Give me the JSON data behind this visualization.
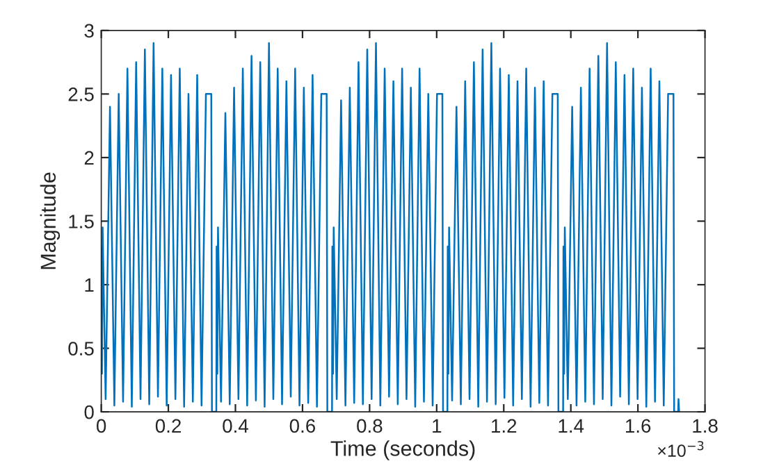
{
  "chart_data": {
    "type": "line",
    "xlabel": "Time (seconds)",
    "ylabel": "Magnitude",
    "annotations": [
      "×10$^{−3}$"
    ],
    "xlim": [
      0,
      1.8
    ],
    "xticks": [
      0,
      0.2,
      0.4,
      0.6,
      0.8,
      1,
      1.2,
      1.4,
      1.6,
      1.8
    ],
    "ylim": [
      0,
      3
    ],
    "yticks": [
      0,
      0.5,
      1,
      1.5,
      2,
      2.5,
      3
    ],
    "grid": false,
    "marker": "none",
    "line_style": "solid",
    "series": [
      {
        "color": "#0072bd",
        "x": [
          0,
          0.002,
          0.004,
          0.013,
          0.026,
          0.039,
          0.052,
          0.065,
          0.078,
          0.091,
          0.104,
          0.117,
          0.13,
          0.143,
          0.156,
          0.169,
          0.182,
          0.195,
          0.208,
          0.221,
          0.234,
          0.247,
          0.26,
          0.273,
          0.286,
          0.299,
          0.312,
          0.328,
          0.33,
          0.343,
          0.344,
          0.346,
          0.348,
          0.357,
          0.37,
          0.383,
          0.396,
          0.409,
          0.422,
          0.435,
          0.448,
          0.461,
          0.474,
          0.487,
          0.5,
          0.513,
          0.526,
          0.539,
          0.552,
          0.565,
          0.578,
          0.591,
          0.604,
          0.617,
          0.63,
          0.643,
          0.656,
          0.672,
          0.674,
          0.688,
          0.689,
          0.691,
          0.693,
          0.702,
          0.715,
          0.728,
          0.741,
          0.754,
          0.767,
          0.78,
          0.793,
          0.806,
          0.819,
          0.832,
          0.845,
          0.858,
          0.871,
          0.884,
          0.897,
          0.91,
          0.923,
          0.936,
          0.949,
          0.962,
          0.975,
          0.988,
          1.001,
          1.017,
          1.019,
          1.032,
          1.033,
          1.035,
          1.037,
          1.046,
          1.059,
          1.072,
          1.085,
          1.098,
          1.111,
          1.124,
          1.137,
          1.15,
          1.163,
          1.176,
          1.189,
          1.202,
          1.215,
          1.228,
          1.241,
          1.254,
          1.267,
          1.28,
          1.293,
          1.306,
          1.319,
          1.332,
          1.345,
          1.361,
          1.363,
          1.377,
          1.378,
          1.38,
          1.382,
          1.391,
          1.404,
          1.417,
          1.43,
          1.443,
          1.456,
          1.469,
          1.482,
          1.495,
          1.508,
          1.521,
          1.534,
          1.547,
          1.56,
          1.573,
          1.586,
          1.599,
          1.612,
          1.625,
          1.638,
          1.651,
          1.664,
          1.677,
          1.69,
          1.706,
          1.708,
          1.72,
          1.721,
          1.723
        ],
        "values": [
          1.3,
          0.3,
          1.45,
          0.1,
          2.4,
          0.05,
          2.5,
          0.08,
          2.7,
          0.04,
          2.75,
          0.1,
          2.85,
          0.06,
          2.9,
          0.12,
          2.7,
          0.05,
          2.65,
          0.1,
          2.7,
          0.04,
          2.5,
          0.08,
          2.65,
          0.05,
          2.5,
          2.5,
          0,
          0,
          1.3,
          0.3,
          1.45,
          0.08,
          2.35,
          0.06,
          2.55,
          0.1,
          2.7,
          0.05,
          2.8,
          0.09,
          2.75,
          0.04,
          2.9,
          0.1,
          2.7,
          0.06,
          2.6,
          0.12,
          2.7,
          0.05,
          2.55,
          0.07,
          2.65,
          0.04,
          2.5,
          2.5,
          0,
          0,
          1.3,
          0.3,
          1.45,
          0.1,
          2.45,
          0.05,
          2.55,
          0.07,
          2.75,
          0.06,
          2.85,
          0.1,
          2.9,
          0.05,
          2.7,
          0.12,
          2.6,
          0.06,
          2.7,
          0.1,
          2.55,
          0.04,
          2.7,
          0.08,
          2.5,
          0.05,
          2.5,
          2.5,
          0,
          0,
          1.3,
          0.3,
          1.45,
          0.09,
          2.4,
          0.06,
          2.6,
          0.1,
          2.75,
          0.04,
          2.85,
          0.08,
          2.9,
          0.06,
          2.7,
          0.11,
          2.65,
          0.05,
          2.6,
          0.1,
          2.7,
          0.04,
          2.55,
          0.07,
          2.6,
          0.05,
          2.5,
          2.5,
          0,
          0,
          1.3,
          0.3,
          1.45,
          0.1,
          2.4,
          0.05,
          2.55,
          0.08,
          2.7,
          0.06,
          2.8,
          0.1,
          2.9,
          0.05,
          2.75,
          0.12,
          2.65,
          0.06,
          2.7,
          0.1,
          2.55,
          0.04,
          2.7,
          0.08,
          2.6,
          0.05,
          2.5,
          2.5,
          0,
          0,
          0.1,
          0
        ]
      }
    ]
  }
}
